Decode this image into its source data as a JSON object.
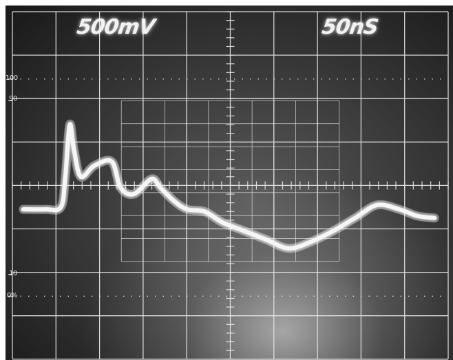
{
  "readouts": {
    "volts_per_div": "500mV",
    "time_per_div": "50nS"
  },
  "scale_labels": {
    "top": "100",
    "upper": "90",
    "lower": "10",
    "bottom": "0%"
  },
  "colors": {
    "screen_background": "#3a3a3a",
    "graticule": "#e8e8e8",
    "trace": "#f6f6f6"
  },
  "trace_data": {
    "x": [
      0,
      0.5,
      0.85,
      0.95,
      1.05,
      1.15,
      1.3,
      1.6,
      2.0,
      2.2,
      2.5,
      2.9,
      3.1,
      3.4,
      3.7,
      4.1,
      4.5,
      5.0,
      5.5,
      6.0,
      6.5,
      7.0,
      7.5,
      8.0,
      8.5,
      8.9,
      9.3
    ],
    "y": [
      -0.55,
      -0.55,
      -0.5,
      0.2,
      1.4,
      0.8,
      0.2,
      0.45,
      0.55,
      -0.05,
      -0.2,
      0.15,
      -0.05,
      -0.35,
      -0.55,
      -0.6,
      -0.85,
      -1.05,
      -1.25,
      -1.45,
      -1.3,
      -1.05,
      -0.75,
      -0.45,
      -0.55,
      -0.7,
      -0.75
    ]
  }
}
